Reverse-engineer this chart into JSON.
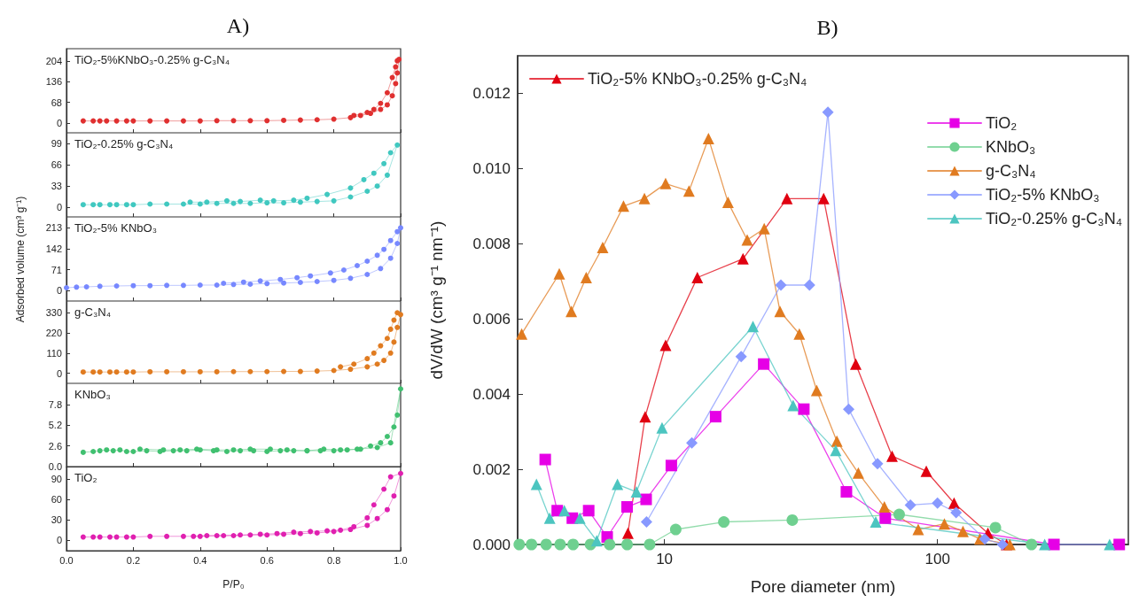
{
  "chart_data": [
    {
      "type": "line",
      "title": "A)",
      "legend": "top left",
      "marker": "circle",
      "tick_labels": "y",
      "xlim": [
        0,
        1
      ],
      "xticks": [
        0,
        0.2,
        0.4,
        0.6,
        0.8,
        1
      ],
      "ylim": [
        -32,
        245
      ],
      "yticks": [
        0,
        68,
        136,
        204
      ],
      "series": [
        {
          "name": "TiO₂-5%KNbO₃-0.25% g-C₃N₄",
          "color": "#e03030",
          "x": [
            0.05,
            0.08,
            0.1,
            0.12,
            0.15,
            0.18,
            0.2,
            0.25,
            0.3,
            0.35,
            0.4,
            0.45,
            0.5,
            0.55,
            0.6,
            0.65,
            0.7,
            0.75,
            0.8,
            0.85,
            0.88,
            0.91,
            0.94,
            0.96,
            0.975,
            0.985,
            0.99,
            0.995,
            0.99,
            0.985,
            0.975,
            0.96,
            0.94,
            0.92,
            0.9,
            0.86
          ],
          "values": [
            7,
            7,
            7,
            7,
            7,
            7,
            7,
            7,
            7,
            7,
            7,
            8,
            8,
            8,
            8,
            9,
            10,
            11,
            13,
            18,
            25,
            32,
            45,
            60,
            90,
            130,
            165,
            210,
            205,
            185,
            150,
            100,
            65,
            45,
            35,
            25
          ]
        }
      ]
    },
    {
      "type": "line",
      "legend": "top left",
      "marker": "circle",
      "tick_labels": "y",
      "xlim": [
        0,
        1
      ],
      "xticks": [
        0,
        0.2,
        0.4,
        0.6,
        0.8,
        1
      ],
      "ylim": [
        -15,
        116
      ],
      "yticks": [
        0,
        33,
        66,
        99
      ],
      "series": [
        {
          "name": "TiO₂-0.25% g-C₃N₄",
          "color": "#40c8c0",
          "x": [
            0.05,
            0.08,
            0.1,
            0.13,
            0.15,
            0.18,
            0.2,
            0.25,
            0.3,
            0.35,
            0.4,
            0.45,
            0.5,
            0.55,
            0.6,
            0.65,
            0.7,
            0.75,
            0.8,
            0.85,
            0.9,
            0.93,
            0.96,
            0.99,
            0.97,
            0.95,
            0.92,
            0.89,
            0.85,
            0.78,
            0.72,
            0.68,
            0.62,
            0.58,
            0.52,
            0.48,
            0.42,
            0.37
          ],
          "values": [
            4,
            4,
            4,
            4,
            4,
            4,
            4,
            5,
            5,
            5,
            5,
            6,
            6,
            6,
            7,
            7,
            8,
            9,
            10,
            16,
            25,
            33,
            50,
            97,
            85,
            68,
            53,
            43,
            30,
            20,
            14,
            11,
            10,
            11,
            9,
            10,
            8,
            8
          ]
        }
      ]
    },
    {
      "type": "line",
      "legend": "top left",
      "marker": "circle",
      "tick_labels": "y",
      "xlim": [
        0,
        1
      ],
      "xticks": [
        0,
        0.2,
        0.4,
        0.6,
        0.8,
        1
      ],
      "ylim": [
        -35,
        250
      ],
      "yticks": [
        0,
        71,
        142,
        213
      ],
      "ylabel": "Adsorbed volume (cm³ g⁻¹)",
      "series": [
        {
          "name": "TiO₂-5% KNbO₃",
          "color": "#7788ff",
          "x": [
            0,
            0.03,
            0.06,
            0.1,
            0.15,
            0.2,
            0.25,
            0.3,
            0.35,
            0.4,
            0.45,
            0.5,
            0.55,
            0.6,
            0.65,
            0.7,
            0.75,
            0.8,
            0.85,
            0.9,
            0.94,
            0.97,
            0.99,
            1,
            0.99,
            0.97,
            0.95,
            0.93,
            0.9,
            0.87,
            0.83,
            0.79,
            0.73,
            0.69,
            0.64,
            0.58,
            0.53,
            0.47
          ],
          "values": [
            10,
            12,
            13,
            15,
            16,
            17,
            17,
            18,
            18,
            19,
            19,
            21,
            22,
            24,
            26,
            28,
            31,
            35,
            42,
            55,
            75,
            110,
            160,
            213,
            200,
            170,
            140,
            120,
            100,
            85,
            70,
            60,
            50,
            44,
            38,
            33,
            29,
            25
          ]
        }
      ]
    },
    {
      "type": "line",
      "legend": "top left",
      "marker": "circle",
      "tick_labels": "y",
      "xlim": [
        0,
        1
      ],
      "xticks": [
        0,
        0.2,
        0.4,
        0.6,
        0.8,
        1
      ],
      "ylim": [
        -55,
        394
      ],
      "yticks": [
        0,
        110,
        220,
        330
      ],
      "series": [
        {
          "name": "g-C₃N₄",
          "color": "#e07b20",
          "x": [
            0.05,
            0.08,
            0.1,
            0.13,
            0.15,
            0.18,
            0.2,
            0.25,
            0.3,
            0.35,
            0.4,
            0.45,
            0.5,
            0.55,
            0.6,
            0.65,
            0.7,
            0.75,
            0.8,
            0.85,
            0.9,
            0.93,
            0.95,
            0.97,
            0.98,
            0.99,
            1,
            0.99,
            0.98,
            0.97,
            0.96,
            0.94,
            0.92,
            0.9,
            0.86,
            0.82
          ],
          "values": [
            7,
            7,
            7,
            7,
            7,
            7,
            7,
            8,
            8,
            8,
            8,
            8,
            9,
            9,
            9,
            10,
            10,
            12,
            15,
            22,
            35,
            50,
            70,
            110,
            170,
            250,
            320,
            330,
            290,
            240,
            190,
            150,
            110,
            80,
            50,
            35
          ]
        }
      ]
    },
    {
      "type": "line",
      "legend": "top left",
      "marker": "circle",
      "tick_labels": "y",
      "xlim": [
        0,
        1
      ],
      "xticks": [
        0,
        0.2,
        0.4,
        0.6,
        0.8,
        1
      ],
      "ylim": [
        0,
        10.5
      ],
      "yticks": [
        {
          "value": 0,
          "label": "0.0"
        },
        2.6,
        5.2,
        7.8
      ],
      "series": [
        {
          "name": "KNbO₃",
          "color": "#40c070",
          "x": [
            0.05,
            0.08,
            0.1,
            0.12,
            0.14,
            0.16,
            0.18,
            0.2,
            0.24,
            0.28,
            0.32,
            0.36,
            0.4,
            0.44,
            0.48,
            0.52,
            0.56,
            0.6,
            0.64,
            0.68,
            0.72,
            0.76,
            0.8,
            0.84,
            0.88,
            0.91,
            0.94,
            0.96,
            0.98,
            0.99,
            1,
            0.97,
            0.93,
            0.87,
            0.82,
            0.77,
            0.72,
            0.66,
            0.61,
            0.55,
            0.5,
            0.45,
            0.39,
            0.34,
            0.29,
            0.22
          ],
          "values": [
            1.8,
            1.9,
            2.0,
            2.1,
            2.0,
            2.1,
            1.9,
            1.9,
            2.0,
            1.9,
            2.0,
            2.0,
            2.1,
            2.0,
            1.9,
            2.0,
            2.0,
            1.9,
            2.0,
            2.0,
            2.0,
            2.0,
            2.0,
            2.1,
            2.2,
            2.6,
            3.0,
            3.8,
            5.0,
            6.5,
            9.8,
            3.0,
            2.4,
            2.2,
            2.1,
            2.2,
            2.0,
            2.1,
            2.2,
            2.2,
            2.1,
            2.1,
            2.2,
            2.1,
            2.1,
            2.2
          ]
        }
      ]
    },
    {
      "type": "line",
      "legend": "top left",
      "marker": "circle",
      "xlabel": "P/P₀",
      "xlim": [
        0,
        1
      ],
      "xticks": [
        {
          "value": 0,
          "label": "0.0"
        },
        0.2,
        0.4,
        0.6,
        0.8,
        {
          "value": 1,
          "label": "1.0"
        }
      ],
      "ylim": [
        -15,
        108
      ],
      "yticks": [
        0,
        30,
        60,
        90
      ],
      "series": [
        {
          "name": "TiO₂",
          "color": "#e020b0",
          "x": [
            0.05,
            0.08,
            0.1,
            0.13,
            0.15,
            0.18,
            0.2,
            0.25,
            0.3,
            0.35,
            0.4,
            0.45,
            0.5,
            0.55,
            0.6,
            0.65,
            0.7,
            0.75,
            0.8,
            0.85,
            0.9,
            0.93,
            0.96,
            0.98,
            1,
            0.97,
            0.95,
            0.92,
            0.9,
            0.86,
            0.82,
            0.78,
            0.73,
            0.68,
            0.63,
            0.58,
            0.52,
            0.47,
            0.42,
            0.38
          ],
          "values": [
            5,
            5,
            5,
            5,
            5,
            5,
            5,
            6,
            6,
            6,
            6,
            7,
            7,
            8,
            8,
            9,
            10,
            11,
            13,
            16,
            22,
            32,
            45,
            65,
            98,
            93,
            75,
            52,
            33,
            20,
            15,
            14,
            13,
            12,
            10,
            9,
            8,
            7,
            7,
            6
          ]
        }
      ]
    },
    {
      "type": "line",
      "title": "B)",
      "xlabel": "Pore diameter (nm)",
      "ylabel": "dV/dW (cm³ g⁻¹ nm⁻¹)",
      "legend": "top right",
      "log": "x",
      "xlim": [
        2.9,
        500
      ],
      "xticks": [
        10,
        100
      ],
      "ylim": [
        0,
        0.013
      ],
      "yticks": [
        {
          "value": 0,
          "label": "0.000"
        },
        {
          "value": 0.002,
          "label": "0.002"
        },
        {
          "value": 0.004,
          "label": "0.004"
        },
        {
          "value": 0.006,
          "label": "0.006"
        },
        {
          "value": 0.008,
          "label": "0.008"
        },
        {
          "value": 0.01,
          "label": "0.010"
        },
        {
          "value": 0.012,
          "label": "0.012"
        }
      ],
      "series": [
        {
          "name": "TiO₂-5% KNbO₃-0.25% g-C₃N₄",
          "color": "#e00010",
          "marker": "triangle",
          "x": [
            7.35,
            8.5,
            10.1,
            13.2,
            19.4,
            28.1,
            38.3,
            50.2,
            68.2,
            91,
            115,
            153,
            179
          ],
          "values": [
            0.0003,
            0.0034,
            0.0053,
            0.0071,
            0.0076,
            0.0092,
            0.0092,
            0.0048,
            0.00235,
            0.00195,
            0.0011,
            0.0003,
            0
          ]
        },
        {
          "name": "TiO₂",
          "color": "#e600e6",
          "marker": "square",
          "x": [
            3.66,
            4.05,
            4.6,
            5.28,
            6.17,
            7.3,
            8.57,
            10.6,
            15.4,
            23.1,
            32.4,
            46.4,
            64.4,
            267,
            463
          ],
          "values": [
            0.00226,
            0.0009,
            0.0007,
            0.0009,
            0.0002,
            0.001,
            0.0012,
            0.0021,
            0.0034,
            0.0048,
            0.0036,
            0.0014,
            0.0007,
            0,
            0
          ]
        },
        {
          "name": "KNbO₃",
          "color": "#6fd090",
          "marker": "circle",
          "x": [
            2.94,
            3.26,
            3.69,
            4.15,
            4.63,
            5.36,
            6.3,
            7.3,
            8.83,
            11,
            16.5,
            29.4,
            72.4,
            163,
            221
          ],
          "values": [
            0,
            0,
            0,
            0,
            0,
            0,
            0,
            0,
            0,
            0.0004,
            0.0006,
            0.00065,
            0.0008,
            0.00045,
            0
          ]
        },
        {
          "name": "g-C₃N₄",
          "color": "#e07b20",
          "marker": "triangle",
          "x": [
            3,
            4.12,
            4.56,
            5.17,
            5.94,
            7.08,
            8.45,
            10.1,
            12.3,
            14.5,
            17.1,
            20.1,
            23.2,
            26.5,
            31.2,
            36.1,
            42.8,
            51.3,
            63.9,
            85,
            106,
            124,
            143,
            184
          ],
          "values": [
            0.0056,
            0.0072,
            0.0062,
            0.0071,
            0.0079,
            0.009,
            0.0092,
            0.0096,
            0.0094,
            0.0108,
            0.0091,
            0.0081,
            0.0084,
            0.0062,
            0.0056,
            0.0041,
            0.00275,
            0.0019,
            0.001,
            0.0004,
            0.00055,
            0.00035,
            0.00015,
            0
          ]
        },
        {
          "name": "TiO₂-5% KNbO₃",
          "color": "#8899ff",
          "marker": "diamond",
          "x": [
            8.6,
            12.6,
            19.1,
            26.7,
            34,
            39.7,
            47.3,
            60.3,
            79.6,
            100,
            117,
            149,
            173
          ],
          "values": [
            0.0006,
            0.0027,
            0.005,
            0.0069,
            0.0069,
            0.0115,
            0.0036,
            0.00215,
            0.00105,
            0.0011,
            0.00085,
            0.00015,
            0
          ]
        },
        {
          "name": "TiO₂-0.25% g-C₃N₄",
          "color": "#4cc5c0",
          "marker": "triangle",
          "x": [
            3.4,
            3.8,
            4.3,
            4.9,
            5.65,
            6.73,
            7.9,
            9.8,
            21.1,
            29.6,
            42.4,
            59.4,
            247,
            427
          ],
          "values": [
            0.0016,
            0.0007,
            0.0009,
            0.0007,
            0.0001,
            0.0016,
            0.0014,
            0.0031,
            0.0058,
            0.0037,
            0.0025,
            0.0006,
            0,
            0
          ]
        }
      ]
    }
  ]
}
